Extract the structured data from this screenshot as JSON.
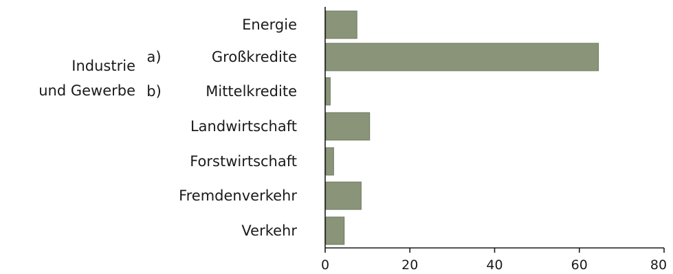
{
  "chart_data": {
    "type": "bar",
    "orientation": "horizontal",
    "title": "",
    "xlabel": "",
    "ylabel": "",
    "categories": [
      "Energie",
      "Großkredite",
      "Mittelkredite",
      "Landwirtschaft",
      "Forstwirtschaft",
      "Fremdenverkehr",
      "Verkehr"
    ],
    "category_prefixes": [
      "",
      "a)",
      "b)",
      "",
      "",
      "",
      ""
    ],
    "group_label": {
      "lines": [
        "Industrie",
        "und Gewerbe"
      ],
      "applies_to": [
        "Großkredite",
        "Mittelkredite"
      ]
    },
    "values": [
      7.5,
      64.5,
      1.2,
      10.5,
      2,
      8.5,
      4.5
    ],
    "xlim": [
      0,
      80
    ],
    "xticks": [
      0,
      20,
      40,
      60,
      80
    ],
    "grid": false,
    "bar_color": "#8a9478"
  }
}
